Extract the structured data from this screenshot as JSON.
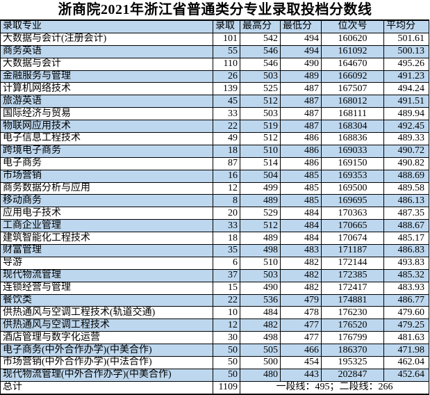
{
  "title": "浙商院2021年浙江省普通类分专业录取投档分数线",
  "colors": {
    "row_highlight": "#BDD7EE",
    "border": "#000000",
    "text": "#000000"
  },
  "table": {
    "headers": [
      "录取专业",
      "录取",
      "最高分",
      "最低分",
      "位次号",
      "平均分"
    ],
    "rows": [
      [
        "大数据与会计(注册会计)",
        "101",
        "542",
        "494",
        "160620",
        "501.61"
      ],
      [
        "商务英语",
        "55",
        "546",
        "494",
        "161092",
        "500.13"
      ],
      [
        "大数据与会计",
        "110",
        "546",
        "490",
        "164670",
        "495.26"
      ],
      [
        "金融服务与管理",
        "26",
        "503",
        "489",
        "166092",
        "491.23"
      ],
      [
        "计算机网络技术",
        "139",
        "525",
        "487",
        "167507",
        "494.24"
      ],
      [
        "旅游英语",
        "45",
        "512",
        "487",
        "168012",
        "491.51"
      ],
      [
        "国际经济与贸易",
        "33",
        "503",
        "487",
        "168111",
        "489.94"
      ],
      [
        "物联网应用技术",
        "22",
        "519",
        "487",
        "168304",
        "492.45"
      ],
      [
        "电子信息工程技术",
        "49",
        "512",
        "486",
        "168836",
        "489.33"
      ],
      [
        "跨境电子商务",
        "18",
        "510",
        "486",
        "169033",
        "490.72"
      ],
      [
        "电子商务",
        "87",
        "514",
        "486",
        "169150",
        "490.82"
      ],
      [
        "市场营销",
        "16",
        "504",
        "485",
        "169353",
        "488.69"
      ],
      [
        "商务数据分析与应用",
        "12",
        "499",
        "485",
        "169500",
        "489.58"
      ],
      [
        "移动商务",
        "8",
        "489",
        "485",
        "169695",
        "486.13"
      ],
      [
        "应用电子技术",
        "20",
        "529",
        "484",
        "170363",
        "487.35"
      ],
      [
        "工商企业管理",
        "33",
        "512",
        "484",
        "170665",
        "488.67"
      ],
      [
        "建筑智能化工程技术",
        "18",
        "489",
        "484",
        "170674",
        "485.17"
      ],
      [
        "财富管理",
        "35",
        "498",
        "483",
        "171187",
        "486.83"
      ],
      [
        "导游",
        "6",
        "510",
        "482",
        "172144",
        "493.83"
      ],
      [
        "现代物流管理",
        "37",
        "503",
        "482",
        "172385",
        "485.32"
      ],
      [
        "连锁经营与管理",
        "15",
        "490",
        "482",
        "172417",
        "483.93"
      ],
      [
        "餐饮类",
        "22",
        "536",
        "479",
        "174881",
        "486.77"
      ],
      [
        "供热通风与空调工程技术(轨道交通)",
        "10",
        "484",
        "478",
        "176230",
        "479.60"
      ],
      [
        "供热通风与空调工程技术",
        "12",
        "482",
        "477",
        "176520",
        "479.25"
      ],
      [
        "酒店管理与数字化运营",
        "30",
        "498",
        "477",
        "176799",
        "481.63"
      ],
      [
        "电子商务(中外合作办学)(中美合作)",
        "50",
        "505",
        "466",
        "186370",
        "471.98"
      ],
      [
        "市场营销(中外合作办学)(中法合作)",
        "50",
        "500",
        "454",
        "195325",
        "462.04"
      ],
      [
        "现代物流管理(中外合作办学)(中美合作)",
        "50",
        "480",
        "443",
        "202847",
        "452.64"
      ]
    ],
    "total": {
      "label": "总计",
      "count": "1109",
      "note": "一段线：495；二段线：266"
    }
  }
}
